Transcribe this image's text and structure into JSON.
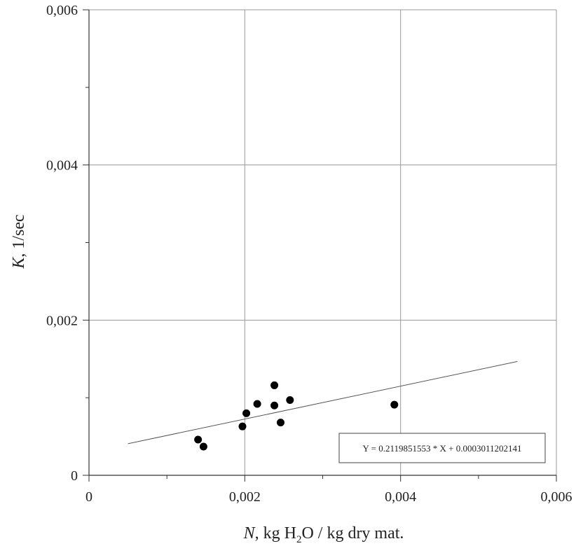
{
  "chart_data": {
    "type": "scatter",
    "title": "",
    "xlabel": {
      "var": "N",
      "rest": ", kg H",
      "sub": "2",
      "tail": "O / kg dry mat."
    },
    "ylabel": {
      "var": "K",
      "rest": ", 1/sec"
    },
    "xlim": [
      0,
      0.006
    ],
    "ylim": [
      0,
      0.006
    ],
    "x_ticks": [
      0,
      0.002,
      0.004,
      0.006
    ],
    "x_tick_labels": [
      "0",
      "0,002",
      "0,004",
      "0,006"
    ],
    "y_ticks": [
      0,
      0.002,
      0.004,
      0.006
    ],
    "y_tick_labels": [
      "0",
      "0,002",
      "0,004",
      "0,006"
    ],
    "minor_ticks": [
      0.001,
      0.003,
      0.005
    ],
    "grid": true,
    "series": [
      {
        "points": [
          {
            "x": 0.0014,
            "y": 0.00046
          },
          {
            "x": 0.00147,
            "y": 0.00037
          },
          {
            "x": 0.00197,
            "y": 0.00063
          },
          {
            "x": 0.00202,
            "y": 0.0008
          },
          {
            "x": 0.00216,
            "y": 0.00092
          },
          {
            "x": 0.00238,
            "y": 0.00116
          },
          {
            "x": 0.00238,
            "y": 0.0009
          },
          {
            "x": 0.00246,
            "y": 0.00068
          },
          {
            "x": 0.00258,
            "y": 0.00097
          },
          {
            "x": 0.00392,
            "y": 0.00091
          }
        ]
      }
    ],
    "regression": {
      "slope": 0.2119851553,
      "intercept": 0.0003011202141,
      "x_range": [
        0.0005,
        0.0055
      ]
    },
    "annotation": "Y = 0.2119851553 * X + 0.0003011202141"
  }
}
